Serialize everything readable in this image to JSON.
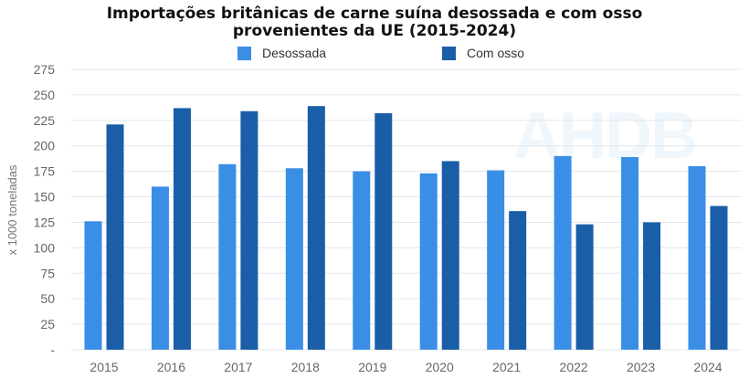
{
  "chart_data": {
    "type": "bar",
    "title": "Importações britânicas de carne suína desossada e com osso provenientes da UE (2015-2024)",
    "title_lines": [
      "Importações britânicas de carne suína desossada e com osso",
      "provenientes da UE (2015-2024)"
    ],
    "xlabel": "",
    "ylabel": "x 1000 toneladas",
    "ylim": [
      0,
      275
    ],
    "yticks": [
      0,
      25,
      50,
      75,
      100,
      125,
      150,
      175,
      200,
      225,
      250,
      275
    ],
    "ytick_labels": [
      "-",
      "25",
      "50",
      "75",
      "100",
      "125",
      "150",
      "175",
      "200",
      "225",
      "250",
      "275"
    ],
    "grid": true,
    "legend_position": "top",
    "categories": [
      "2015",
      "2016",
      "2017",
      "2018",
      "2019",
      "2020",
      "2021",
      "2022",
      "2023",
      "2024"
    ],
    "series": [
      {
        "name": "Desossada",
        "color": "#3a8ee6",
        "values": [
          126,
          160,
          182,
          178,
          175,
          173,
          176,
          190,
          189,
          180
        ]
      },
      {
        "name": "Com osso",
        "color": "#1a5ea8",
        "values": [
          221,
          237,
          234,
          239,
          232,
          185,
          136,
          123,
          125,
          141
        ]
      }
    ],
    "watermark": "AHDB"
  }
}
